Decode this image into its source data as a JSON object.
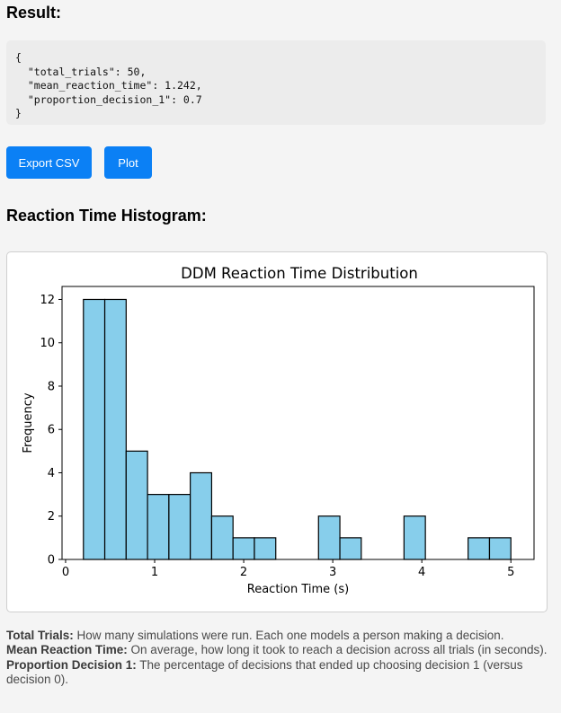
{
  "result": {
    "heading": "Result:",
    "json_text": "{\n  \"total_trials\": 50,\n  \"mean_reaction_time\": 1.242,\n  \"proportion_decision_1\": 0.7\n}"
  },
  "buttons": {
    "export_label": "Export CSV",
    "plot_label": "Plot",
    "color": "#0b80f5"
  },
  "histogram": {
    "heading": "Reaction Time Histogram:"
  },
  "chart_data": {
    "type": "bar",
    "title": "DDM Reaction Time Distribution",
    "xlabel": "Reaction Time (s)",
    "ylabel": "Frequency",
    "xlim": [
      -0.04,
      5.26
    ],
    "ylim": [
      0,
      12.6
    ],
    "xticks": [
      0,
      1,
      2,
      3,
      4,
      5
    ],
    "xtick_labels": [
      "0",
      "1",
      "2",
      "3",
      "4",
      "5"
    ],
    "yticks": [
      0,
      2,
      4,
      6,
      8,
      10,
      12
    ],
    "ytick_labels": [
      "0",
      "2",
      "4",
      "6",
      "8",
      "10",
      "12"
    ],
    "bin_edges": [
      0.2,
      0.44,
      0.68,
      0.92,
      1.16,
      1.4,
      1.64,
      1.88,
      2.12,
      2.36,
      2.6,
      2.84,
      3.08,
      3.32,
      3.56,
      3.8,
      4.04,
      4.28,
      4.52,
      4.76,
      5.0
    ],
    "values": [
      12,
      12,
      5,
      3,
      3,
      4,
      2,
      1,
      1,
      0,
      0,
      2,
      1,
      0,
      0,
      2,
      0,
      0,
      1,
      1
    ],
    "bar_color": "#87ceeb",
    "edge_color": "#000000",
    "grid": false
  },
  "notes": {
    "total_trials_label": "Total Trials:",
    "total_trials_text": " How many simulations were run. Each one models a person making a decision.",
    "mean_rt_label": "Mean Reaction Time:",
    "mean_rt_text": " On average, how long it took to reach a decision across all trials (in seconds).",
    "prop_label": "Proportion Decision 1:",
    "prop_text": " The percentage of decisions that ended up choosing decision 1 (versus decision 0)."
  }
}
